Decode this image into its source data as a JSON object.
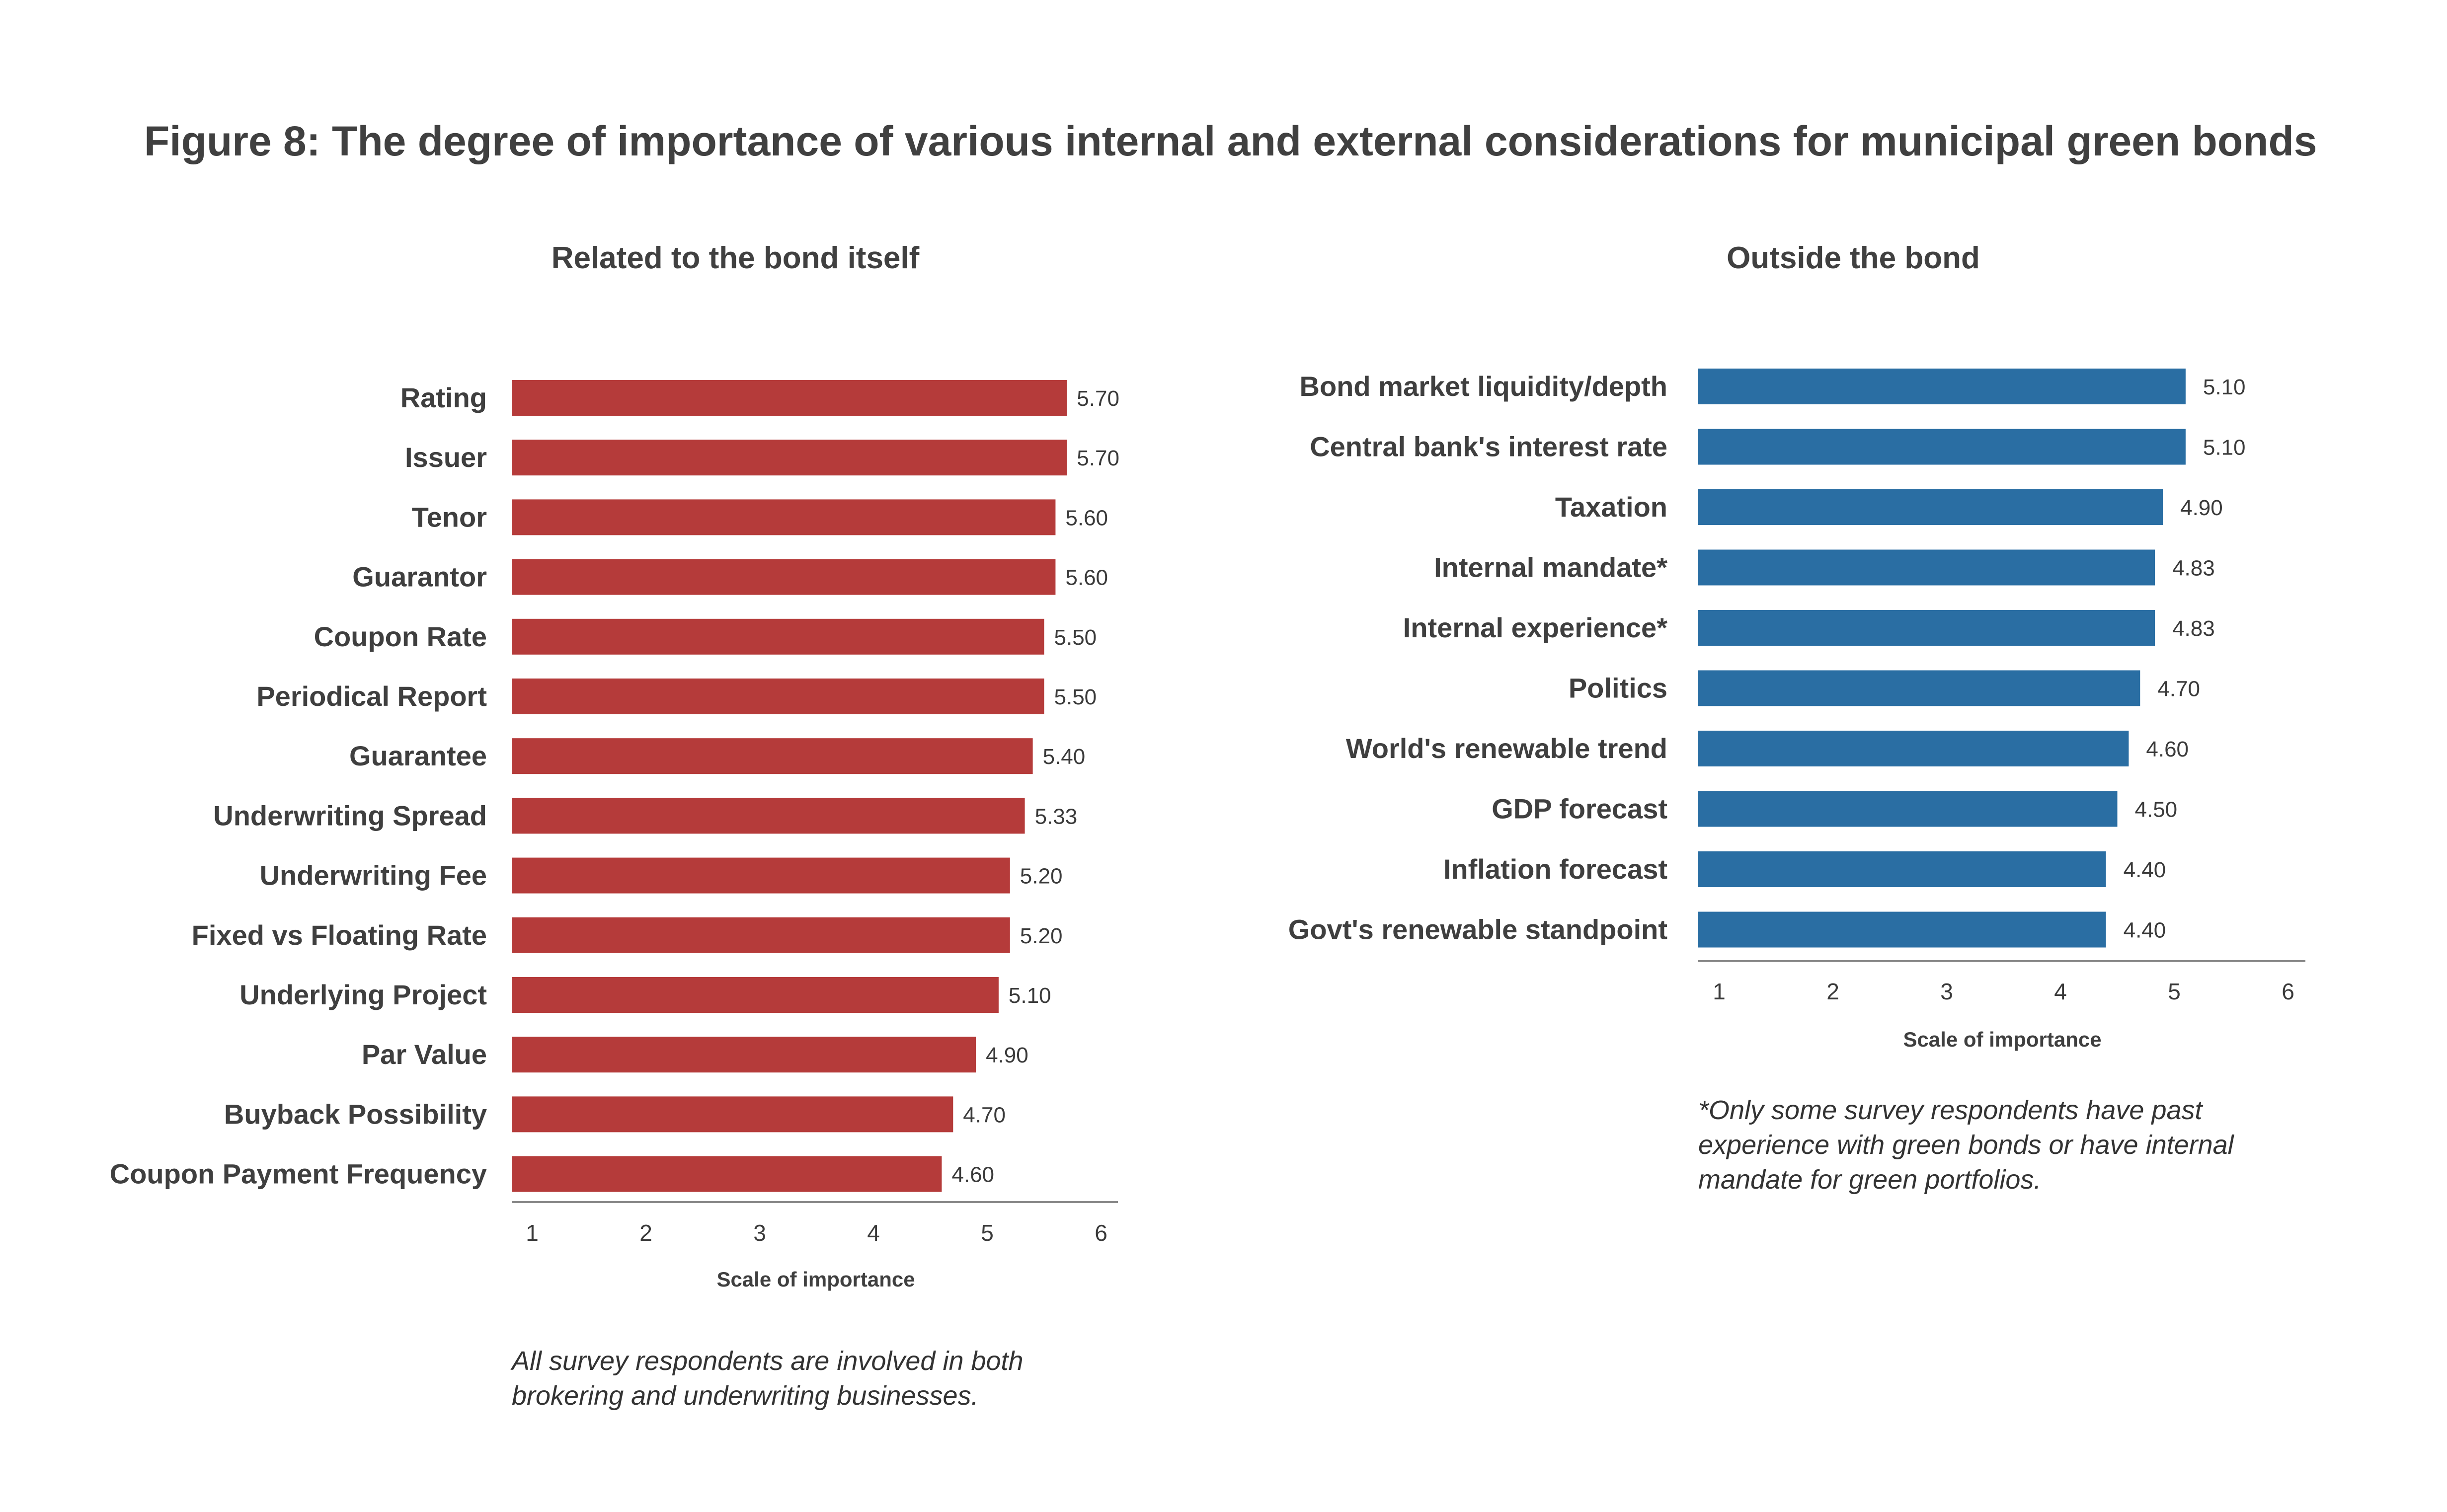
{
  "title": "Figure 8: The degree of importance of various internal and external considerations for municipal green bonds",
  "chart_data": [
    {
      "type": "bar",
      "orientation": "horizontal",
      "title": "Related to the bond itself",
      "xlabel": "Scale of importance",
      "ylabel": "",
      "xlim": [
        1,
        6
      ],
      "xticks": [
        "1",
        "2",
        "3",
        "4",
        "5",
        "6"
      ],
      "color": "#b53b3a",
      "categories": [
        "Rating",
        "Issuer",
        "Tenor",
        "Guarantor",
        "Coupon Rate",
        "Periodical Report",
        "Guarantee",
        "Underwriting Spread",
        "Underwriting Fee",
        "Fixed vs Floating Rate",
        "Underlying Project",
        "Par Value",
        "Buyback Possibility",
        "Coupon Payment Frequency"
      ],
      "values": [
        5.7,
        5.7,
        5.6,
        5.6,
        5.5,
        5.5,
        5.4,
        5.33,
        5.2,
        5.2,
        5.1,
        4.9,
        4.7,
        4.6
      ],
      "value_labels": [
        "5.70",
        "5.70",
        "5.60",
        "5.60",
        "5.50",
        "5.50",
        "5.40",
        "5.33",
        "5.20",
        "5.20",
        "5.10",
        "4.90",
        "4.70",
        "4.60"
      ],
      "grid": false,
      "note": [
        "All survey respondents are involved in both",
        "brokering and underwriting businesses."
      ]
    },
    {
      "type": "bar",
      "orientation": "horizontal",
      "title": "Outside the bond",
      "xlabel": "Scale of importance",
      "ylabel": "",
      "xlim": [
        1,
        6
      ],
      "xticks": [
        "1",
        "2",
        "3",
        "4",
        "5",
        "6"
      ],
      "color": "#2a6ea3",
      "categories": [
        "Bond market liquidity/depth",
        "Central bank's interest rate",
        "Taxation",
        "Internal mandate*",
        "Internal experience*",
        "Politics",
        "World's renewable trend",
        "GDP forecast",
        "Inflation forecast",
        "Govt's renewable standpoint"
      ],
      "values": [
        5.1,
        5.1,
        4.9,
        4.83,
        4.83,
        4.7,
        4.6,
        4.5,
        4.4,
        4.4
      ],
      "value_labels": [
        "5.10",
        "5.10",
        "4.90",
        "4.83",
        "4.83",
        "4.70",
        "4.60",
        "4.50",
        "4.40",
        "4.40"
      ],
      "grid": false,
      "note": [
        "*Only some survey respondents have past",
        "experience with green bonds or have internal",
        "mandate for green portfolios."
      ]
    }
  ]
}
